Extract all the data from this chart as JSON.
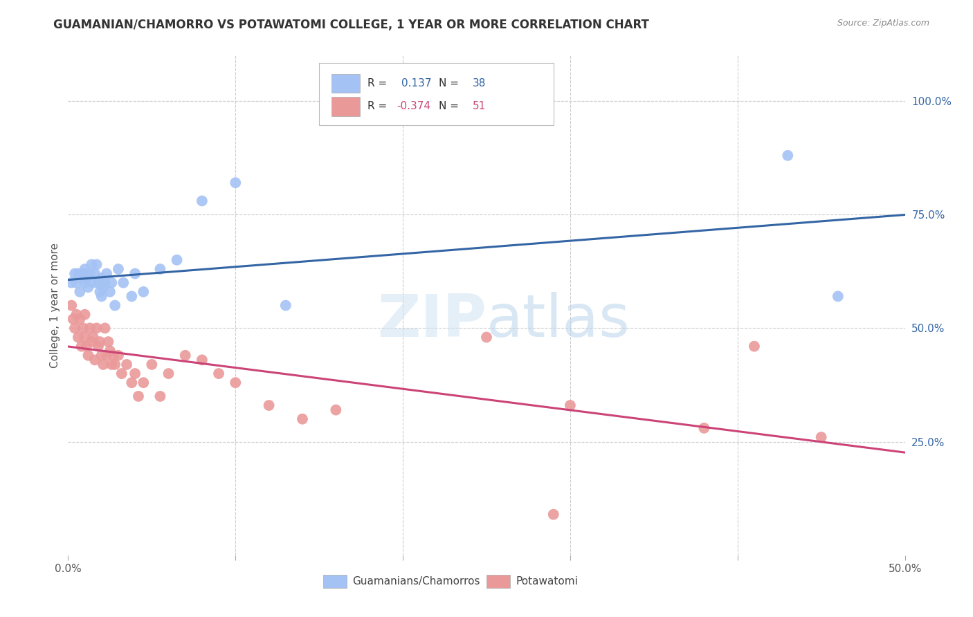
{
  "title": "GUAMANIAN/CHAMORRO VS POTAWATOMI COLLEGE, 1 YEAR OR MORE CORRELATION CHART",
  "source": "Source: ZipAtlas.com",
  "ylabel": "College, 1 year or more",
  "right_yticks": [
    "100.0%",
    "75.0%",
    "50.0%",
    "25.0%"
  ],
  "right_ytick_vals": [
    1.0,
    0.75,
    0.5,
    0.25
  ],
  "xlim": [
    0.0,
    0.5
  ],
  "ylim": [
    0.0,
    1.1
  ],
  "blue_color": "#a4c2f4",
  "pink_color": "#ea9999",
  "blue_line_color": "#3465a4",
  "pink_line_color": "#cc4477",
  "watermark_color": "#ddeeff",
  "guamanian_x": [
    0.002,
    0.004,
    0.005,
    0.006,
    0.007,
    0.008,
    0.009,
    0.01,
    0.01,
    0.011,
    0.012,
    0.013,
    0.014,
    0.015,
    0.016,
    0.017,
    0.018,
    0.019,
    0.02,
    0.02,
    0.021,
    0.022,
    0.023,
    0.025,
    0.026,
    0.028,
    0.03,
    0.033,
    0.038,
    0.04,
    0.045,
    0.055,
    0.065,
    0.08,
    0.1,
    0.13,
    0.43,
    0.46
  ],
  "guamanian_y": [
    0.6,
    0.62,
    0.6,
    0.62,
    0.58,
    0.61,
    0.62,
    0.6,
    0.63,
    0.61,
    0.59,
    0.62,
    0.64,
    0.6,
    0.62,
    0.64,
    0.6,
    0.58,
    0.57,
    0.61,
    0.59,
    0.6,
    0.62,
    0.58,
    0.6,
    0.55,
    0.63,
    0.6,
    0.57,
    0.62,
    0.58,
    0.63,
    0.65,
    0.78,
    0.82,
    0.55,
    0.88,
    0.57
  ],
  "potawatomi_x": [
    0.002,
    0.003,
    0.004,
    0.005,
    0.006,
    0.007,
    0.008,
    0.009,
    0.01,
    0.01,
    0.011,
    0.012,
    0.013,
    0.014,
    0.015,
    0.016,
    0.017,
    0.018,
    0.019,
    0.02,
    0.021,
    0.022,
    0.023,
    0.024,
    0.025,
    0.026,
    0.027,
    0.028,
    0.03,
    0.032,
    0.035,
    0.038,
    0.04,
    0.042,
    0.045,
    0.05,
    0.055,
    0.06,
    0.07,
    0.08,
    0.09,
    0.1,
    0.12,
    0.14,
    0.16,
    0.25,
    0.3,
    0.38,
    0.41,
    0.45,
    0.29
  ],
  "potawatomi_y": [
    0.55,
    0.52,
    0.5,
    0.53,
    0.48,
    0.52,
    0.46,
    0.5,
    0.53,
    0.48,
    0.46,
    0.44,
    0.5,
    0.47,
    0.48,
    0.43,
    0.5,
    0.46,
    0.47,
    0.44,
    0.42,
    0.5,
    0.44,
    0.47,
    0.45,
    0.42,
    0.44,
    0.42,
    0.44,
    0.4,
    0.42,
    0.38,
    0.4,
    0.35,
    0.38,
    0.42,
    0.35,
    0.4,
    0.44,
    0.43,
    0.4,
    0.38,
    0.33,
    0.3,
    0.32,
    0.48,
    0.33,
    0.28,
    0.46,
    0.26,
    0.09
  ],
  "xtick_positions": [
    0.0,
    0.1,
    0.2,
    0.3,
    0.4,
    0.5
  ],
  "xtick_labels": [
    "0.0%",
    "",
    "",
    "",
    "",
    "50.0%"
  ]
}
